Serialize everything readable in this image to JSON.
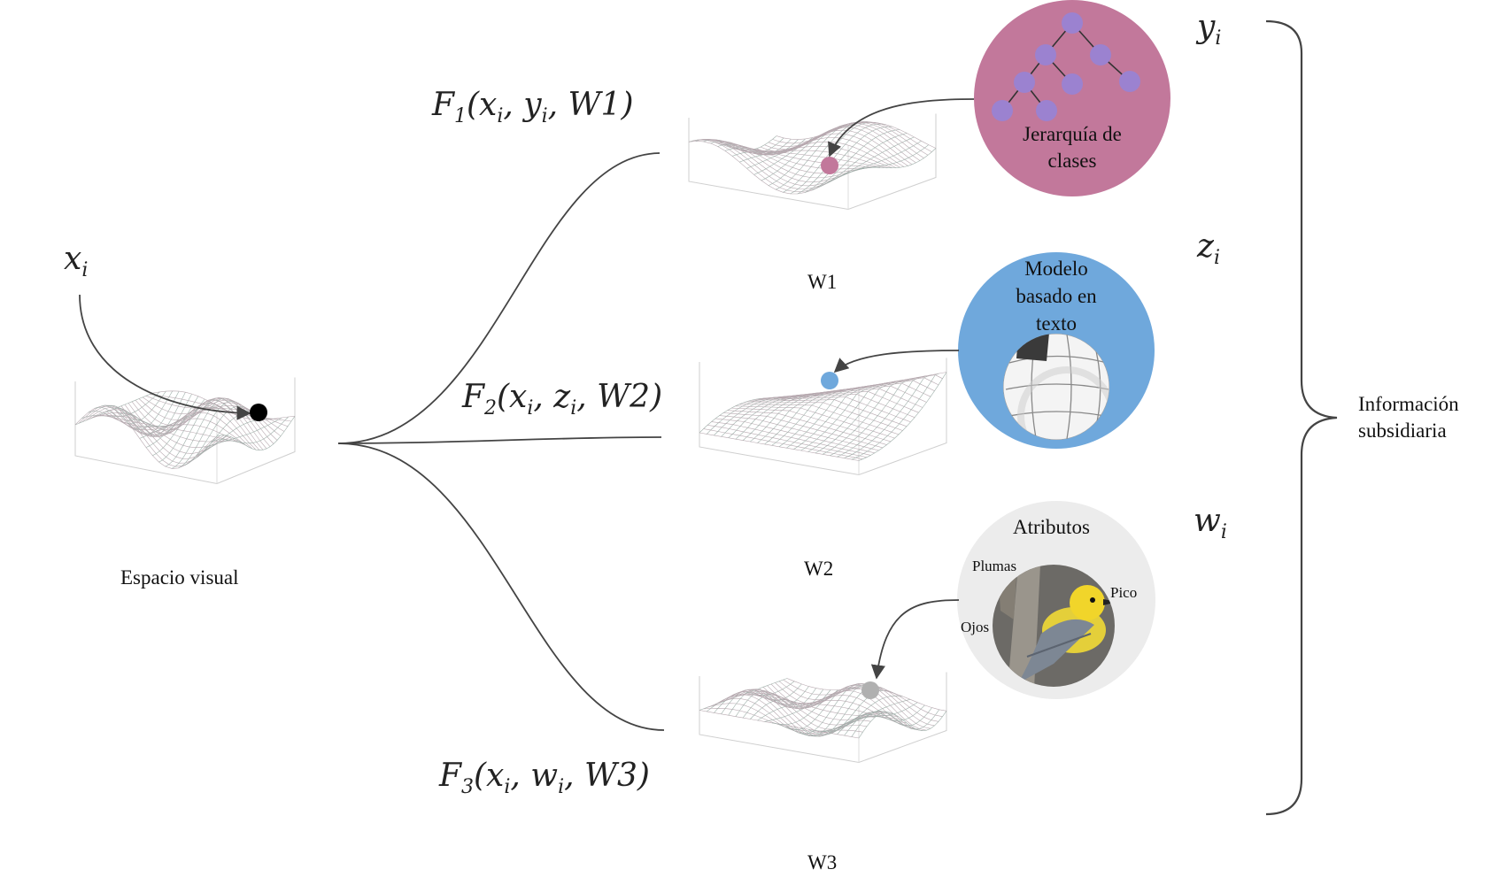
{
  "visual_space": {
    "var": "x",
    "sub": "i",
    "label": "Espacio visual"
  },
  "branches": [
    {
      "fn": "F",
      "fn_sub": "1",
      "args": "(x",
      "args_sub": "i",
      "mid": ", y",
      "mid_sub": "i",
      "tail": ", W1)",
      "space_label": "W1"
    },
    {
      "fn": "F",
      "fn_sub": "2",
      "args": "(x",
      "args_sub": "i",
      "mid": ", z",
      "mid_sub": "i",
      "tail": ", W2)",
      "space_label": "W2"
    },
    {
      "fn": "F",
      "fn_sub": "3",
      "args": "(x",
      "args_sub": "i",
      "mid": ", w",
      "mid_sub": "i",
      "tail": ", W3)",
      "space_label": "W3"
    }
  ],
  "side_info": {
    "y": {
      "var": "y",
      "sub": "i"
    },
    "z": {
      "var": "z",
      "sub": "i"
    },
    "w": {
      "var": "w",
      "sub": "i"
    },
    "hierarchy": {
      "line1": "Jerarquía de",
      "line2": "clases",
      "color": "#c2789b",
      "node_color": "#9b82d0"
    },
    "text_model": {
      "line1": "Modelo",
      "line2": "basado en",
      "line3": "texto",
      "color": "#6fa8dc"
    },
    "attributes": {
      "title": "Atributos",
      "feathers": "Plumas",
      "beak": "Pico",
      "eyes": "Ojos",
      "color": "#ececec"
    },
    "brace_label": {
      "line1": "Información",
      "line2": "subsidiaria"
    }
  },
  "point_colors": {
    "visual": "#000000",
    "w1": "#c2789b",
    "w2": "#6fa8dc",
    "w3": "#b0b0b0"
  }
}
